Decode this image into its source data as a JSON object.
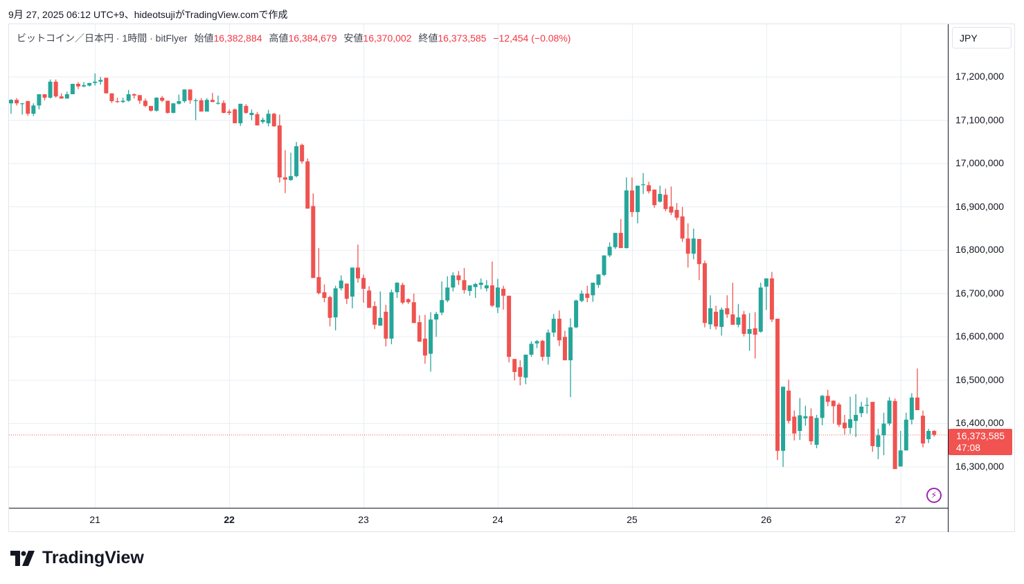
{
  "caption": "9月 27, 2025 06:12 UTC+9、hideotsujiがTradingView.comで作成",
  "legend": {
    "symbol": "ビットコイン／日本円 · 1時間 · bitFlyer",
    "open_label": "始値",
    "open": "16,382,884",
    "high_label": "高値",
    "high": "16,384,679",
    "low_label": "安値",
    "low": "16,370,002",
    "close_label": "終値",
    "close": "16,373,585",
    "change": "−12,454 (−0.08%)"
  },
  "currency_button": "JPY",
  "last_price": {
    "price": "16,373,585",
    "countdown": "47:08"
  },
  "logo_text": "TradingView",
  "icons": {
    "bolt": "lightning-icon",
    "logo": "tradingview-logo-icon"
  },
  "colors": {
    "up": "#26a69a",
    "down": "#ef5350",
    "grid": "#e8eef3",
    "last": "#f05350"
  },
  "chart_data": {
    "type": "candlestick",
    "title": "ビットコイン／日本円 · 1時間 · bitFlyer",
    "interval": "1h",
    "value_scale": 1000,
    "value_unit": "JPY (values ×1000)",
    "ylim": [
      16210,
      17340
    ],
    "grid": true,
    "y_ticks": [
      {
        "value": 17200,
        "label": "17,200,000"
      },
      {
        "value": 17100,
        "label": "17,100,000"
      },
      {
        "value": 17000,
        "label": "17,000,000"
      },
      {
        "value": 16900,
        "label": "16,900,000"
      },
      {
        "value": 16800,
        "label": "16,800,000"
      },
      {
        "value": 16700,
        "label": "16,700,000"
      },
      {
        "value": 16600,
        "label": "16,600,000"
      },
      {
        "value": 16500,
        "label": "16,500,000"
      },
      {
        "value": 16400,
        "label": "16,400,000"
      },
      {
        "value": 16300,
        "label": "16,300,000"
      }
    ],
    "x_ticks": [
      {
        "index": 15,
        "label": "21",
        "bold": false
      },
      {
        "index": 39,
        "label": "22",
        "bold": true
      },
      {
        "index": 63,
        "label": "23",
        "bold": false
      },
      {
        "index": 87,
        "label": "24",
        "bold": false
      },
      {
        "index": 111,
        "label": "25",
        "bold": false
      },
      {
        "index": 135,
        "label": "26",
        "bold": false
      },
      {
        "index": 159,
        "label": "27",
        "bold": false
      }
    ],
    "last_price": 16373.585,
    "ohlc": [
      [
        17139,
        17149,
        17115,
        17147
      ],
      [
        17147,
        17151,
        17134,
        17139
      ],
      [
        17139,
        17140,
        17113,
        17139
      ],
      [
        17144,
        17145,
        17110,
        17115
      ],
      [
        17115,
        17139,
        17110,
        17134
      ],
      [
        17134,
        17160,
        17125,
        17160
      ],
      [
        17160,
        17160,
        17146,
        17152
      ],
      [
        17152,
        17194,
        17150,
        17189
      ],
      [
        17189,
        17194,
        17152,
        17155
      ],
      [
        17155,
        17162,
        17150,
        17150
      ],
      [
        17150,
        17166,
        17150,
        17160
      ],
      [
        17160,
        17184,
        17160,
        17184
      ],
      [
        17184,
        17188,
        17172,
        17178
      ],
      [
        17178,
        17188,
        17176,
        17181
      ],
      [
        17180,
        17186,
        17178,
        17186
      ],
      [
        17186,
        17208,
        17180,
        17189
      ],
      [
        17189,
        17200,
        17182,
        17193
      ],
      [
        17198,
        17198,
        17162,
        17162
      ],
      [
        17162,
        17162,
        17140,
        17144
      ],
      [
        17144,
        17152,
        17140,
        17142
      ],
      [
        17142,
        17152,
        17140,
        17145
      ],
      [
        17145,
        17170,
        17143,
        17160
      ],
      [
        17160,
        17162,
        17150,
        17157
      ],
      [
        17158,
        17158,
        17138,
        17145
      ],
      [
        17145,
        17150,
        17130,
        17133
      ],
      [
        17133,
        17133,
        17120,
        17122
      ],
      [
        17122,
        17153,
        17120,
        17152
      ],
      [
        17152,
        17156,
        17142,
        17145
      ],
      [
        17145,
        17145,
        17115,
        17117
      ],
      [
        17117,
        17139,
        17116,
        17139
      ],
      [
        17138,
        17159,
        17136,
        17144
      ],
      [
        17144,
        17171,
        17140,
        17171
      ],
      [
        17171,
        17171,
        17138,
        17146
      ],
      [
        17146,
        17150,
        17100,
        17146
      ],
      [
        17146,
        17151,
        17120,
        17120
      ],
      [
        17120,
        17151,
        17120,
        17147
      ],
      [
        17147,
        17163,
        17142,
        17142
      ],
      [
        17140,
        17157,
        17136,
        17140
      ],
      [
        17140,
        17146,
        17116,
        17117
      ],
      [
        17120,
        17125,
        17112,
        17117
      ],
      [
        17125,
        17127,
        17093,
        17093
      ],
      [
        17093,
        17138,
        17087,
        17138
      ],
      [
        17133,
        17137,
        17115,
        17117
      ],
      [
        17112,
        17125,
        17100,
        17117
      ],
      [
        17114,
        17119,
        17088,
        17088
      ],
      [
        17096,
        17106,
        17092,
        17101
      ],
      [
        17093,
        17124,
        17086,
        17115
      ],
      [
        17115,
        17117,
        17085,
        17086
      ],
      [
        17088,
        17113,
        16956,
        16968
      ],
      [
        16968,
        17031,
        16932,
        16963
      ],
      [
        16962,
        17025,
        16960,
        16971
      ],
      [
        16971,
        17050,
        16968,
        17040
      ],
      [
        17043,
        17046,
        17000,
        17005
      ],
      [
        17005,
        17012,
        16896,
        16896
      ],
      [
        16902,
        16931,
        16736,
        16736
      ],
      [
        16738,
        16805,
        16698,
        16701
      ],
      [
        16703,
        16721,
        16680,
        16690
      ],
      [
        16692,
        16695,
        16624,
        16644
      ],
      [
        16645,
        16718,
        16615,
        16712
      ],
      [
        16712,
        16742,
        16707,
        16730
      ],
      [
        16723,
        16723,
        16676,
        16688
      ],
      [
        16693,
        16760,
        16666,
        16760
      ],
      [
        16760,
        16813,
        16725,
        16735
      ],
      [
        16736,
        16744,
        16679,
        16711
      ],
      [
        16707,
        16717,
        16667,
        16667
      ],
      [
        16671,
        16682,
        16618,
        16628
      ],
      [
        16626,
        16705,
        16626,
        16644
      ],
      [
        16658,
        16674,
        16578,
        16596
      ],
      [
        16596,
        16709,
        16583,
        16703
      ],
      [
        16703,
        16726,
        16690,
        16725
      ],
      [
        16720,
        16725,
        16675,
        16679
      ],
      [
        16687,
        16689,
        16676,
        16680
      ],
      [
        16680,
        16700,
        16632,
        16632
      ],
      [
        16634,
        16650,
        16589,
        16589
      ],
      [
        16596,
        16651,
        16538,
        16557
      ],
      [
        16561,
        16657,
        16520,
        16640
      ],
      [
        16640,
        16658,
        16600,
        16653
      ],
      [
        16656,
        16728,
        16650,
        16685
      ],
      [
        16684,
        16740,
        16680,
        16714
      ],
      [
        16714,
        16749,
        16705,
        16742
      ],
      [
        16742,
        16752,
        16720,
        16731
      ],
      [
        16731,
        16759,
        16700,
        16708
      ],
      [
        16706,
        16719,
        16695,
        16719
      ],
      [
        16715,
        16725,
        16690,
        16722
      ],
      [
        16720,
        16735,
        16710,
        16725
      ],
      [
        16712,
        16731,
        16705,
        16719
      ],
      [
        16719,
        16774,
        16669,
        16672
      ],
      [
        16668,
        16734,
        16655,
        16714
      ],
      [
        16711,
        16718,
        16663,
        16695
      ],
      [
        16695,
        16695,
        16541,
        16554
      ],
      [
        16549,
        16549,
        16500,
        16519
      ],
      [
        16530,
        16546,
        16488,
        16508
      ],
      [
        16506,
        16559,
        16491,
        16559
      ],
      [
        16559,
        16590,
        16554,
        16584
      ],
      [
        16585,
        16593,
        16574,
        16590
      ],
      [
        16591,
        16593,
        16545,
        16554
      ],
      [
        16554,
        16617,
        16536,
        16610
      ],
      [
        16610,
        16653,
        16600,
        16642
      ],
      [
        16642,
        16661,
        16579,
        16592
      ],
      [
        16600,
        16614,
        16546,
        16546
      ],
      [
        16546,
        16643,
        16461,
        16622
      ],
      [
        16622,
        16686,
        16620,
        16684
      ],
      [
        16683,
        16707,
        16680,
        16700
      ],
      [
        16700,
        16718,
        16680,
        16690
      ],
      [
        16696,
        16725,
        16681,
        16725
      ],
      [
        16720,
        16745,
        16713,
        16744
      ],
      [
        16743,
        16788,
        16740,
        16788
      ],
      [
        16788,
        16818,
        16784,
        16808
      ],
      [
        16807,
        16840,
        16803,
        16840
      ],
      [
        16840,
        16872,
        16805,
        16805
      ],
      [
        16805,
        16968,
        16804,
        16938
      ],
      [
        16938,
        16968,
        16877,
        16888
      ],
      [
        16888,
        16949,
        16862,
        16949
      ],
      [
        16952,
        16978,
        16930,
        16952
      ],
      [
        16950,
        16958,
        16931,
        16936
      ],
      [
        16940,
        16940,
        16898,
        16904
      ],
      [
        16912,
        16949,
        16910,
        16930
      ],
      [
        16928,
        16942,
        16890,
        16895
      ],
      [
        16901,
        16947,
        16881,
        16887
      ],
      [
        16893,
        16909,
        16869,
        16875
      ],
      [
        16878,
        16900,
        16819,
        16827
      ],
      [
        16827,
        16862,
        16760,
        16792
      ],
      [
        16792,
        16850,
        16779,
        16827
      ],
      [
        16826,
        16826,
        16731,
        16768
      ],
      [
        16770,
        16776,
        16622,
        16632
      ],
      [
        16629,
        16696,
        16618,
        16666
      ],
      [
        16658,
        16672,
        16617,
        16624
      ],
      [
        16623,
        16668,
        16603,
        16663
      ],
      [
        16666,
        16696,
        16644,
        16652
      ],
      [
        16652,
        16725,
        16628,
        16628
      ],
      [
        16628,
        16676,
        16622,
        16645
      ],
      [
        16652,
        16660,
        16601,
        16607
      ],
      [
        16607,
        16655,
        16568,
        16618
      ],
      [
        16620,
        16657,
        16550,
        16605
      ],
      [
        16612,
        16725,
        16610,
        16714
      ],
      [
        16716,
        16735,
        16662,
        16735
      ],
      [
        16735,
        16750,
        16634,
        16640
      ],
      [
        16642,
        16642,
        16316,
        16337
      ],
      [
        16337,
        16485,
        16300,
        16485
      ],
      [
        16476,
        16501,
        16400,
        16406
      ],
      [
        16416,
        16430,
        16361,
        16377
      ],
      [
        16383,
        16459,
        16362,
        16419
      ],
      [
        16412,
        16441,
        16395,
        16417
      ],
      [
        16417,
        16435,
        16351,
        16359
      ],
      [
        16351,
        16420,
        16343,
        16413
      ],
      [
        16413,
        16466,
        16396,
        16464
      ],
      [
        16464,
        16478,
        16440,
        16450
      ],
      [
        16453,
        16453,
        16400,
        16440
      ],
      [
        16444,
        16448,
        16392,
        16397
      ],
      [
        16402,
        16420,
        16375,
        16389
      ],
      [
        16390,
        16462,
        16376,
        16410
      ],
      [
        16406,
        16468,
        16369,
        16420
      ],
      [
        16424,
        16450,
        16415,
        16439
      ],
      [
        16443,
        16460,
        16423,
        16443
      ],
      [
        16450,
        16450,
        16335,
        16348
      ],
      [
        16346,
        16388,
        16318,
        16373
      ],
      [
        16373,
        16425,
        16327,
        16400
      ],
      [
        16400,
        16461,
        16395,
        16453
      ],
      [
        16452,
        16458,
        16295,
        16295
      ],
      [
        16301,
        16383,
        16301,
        16338
      ],
      [
        16338,
        16425,
        16338,
        16409
      ],
      [
        16409,
        16470,
        16398,
        16460
      ],
      [
        16460,
        16527,
        16431,
        16431
      ],
      [
        16418,
        16430,
        16345,
        16354
      ],
      [
        16364,
        16388,
        16355,
        16383
      ],
      [
        16383,
        16385,
        16370,
        16374
      ]
    ]
  }
}
